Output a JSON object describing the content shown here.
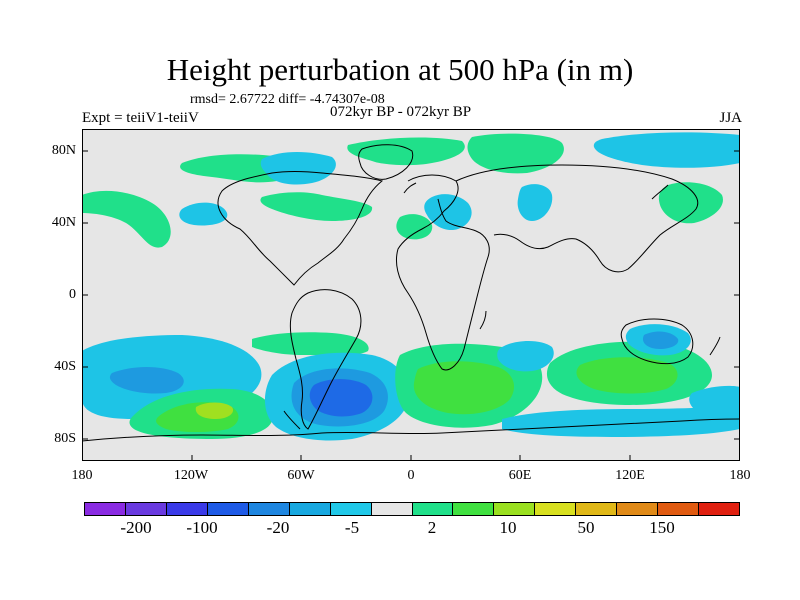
{
  "title": "Height perturbation at 500 hPa (in m)",
  "stats_line": "rmsd= 2.67722 diff= -4.74307e-08",
  "period_line": "072kyr BP - 072kyr BP",
  "experiment_label": "Expt = teiiV1-teiiV",
  "season_label": "JJA",
  "lat_labels": [
    "80N",
    "40N",
    "0",
    "40S",
    "80S"
  ],
  "lon_labels": [
    "180",
    "120W",
    "60W",
    "0",
    "60E",
    "120E",
    "180"
  ],
  "colorbar": {
    "colors": [
      "#8a2be2",
      "#6a3ae0",
      "#3a3ae8",
      "#1e5ae6",
      "#1e86e0",
      "#18a8e0",
      "#20c8e8",
      "#e6e6e6",
      "#20e08a",
      "#40e040",
      "#9ae020",
      "#d8e020",
      "#e0b818",
      "#e08a18",
      "#e05a10",
      "#e02010"
    ],
    "labels": [
      "-200",
      "-100",
      "-20",
      "-5",
      "2",
      "10",
      "50",
      "150"
    ]
  },
  "map_colors": {
    "background": "#e6e6e6",
    "light_blue": "#1ec4e6",
    "mid_blue": "#1e9ae0",
    "deep_blue": "#1e6ae6",
    "green": "#20e08a",
    "bright_green": "#40e040",
    "yellow_green": "#a0e020",
    "coast": "#000000"
  }
}
